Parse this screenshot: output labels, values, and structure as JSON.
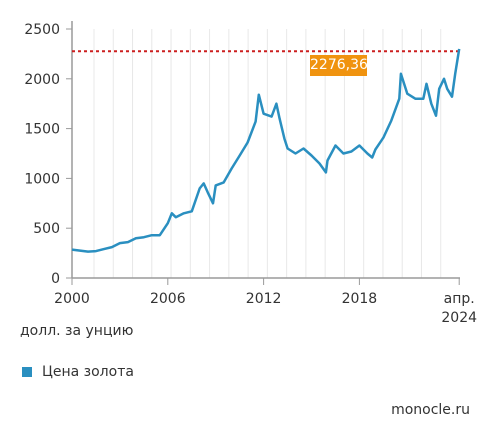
{
  "chart_data": {
    "type": "line",
    "ylim": [
      0,
      2500
    ],
    "yticks": [
      0,
      500,
      1000,
      1500,
      2000,
      2500
    ],
    "xlim": [
      2000,
      2024.3
    ],
    "xticks": [
      {
        "value": 2000,
        "label": "2000",
        "label2": ""
      },
      {
        "value": 2006,
        "label": "2006",
        "label2": ""
      },
      {
        "value": 2012,
        "label": "2012",
        "label2": ""
      },
      {
        "value": 2018,
        "label": "2018",
        "label2": ""
      },
      {
        "value": 2024.25,
        "label": "апр.",
        "label2": "2024"
      }
    ],
    "grid": "vertical",
    "ylabel": "долл. за унцию",
    "reference_line": {
      "value": 2276.36,
      "label": "2276,36",
      "color": "#cc1f1f"
    },
    "series": [
      {
        "name": "Цена золота",
        "color": "#2a8fc0",
        "x": [
          2000,
          2000.5,
          2001,
          2001.5,
          2002,
          2002.5,
          2003,
          2003.5,
          2004,
          2004.5,
          2005,
          2005.5,
          2006,
          2006.25,
          2006.5,
          2007,
          2007.5,
          2008,
          2008.25,
          2008.5,
          2008.83,
          2009,
          2009.5,
          2010,
          2010.5,
          2011,
          2011.5,
          2011.7,
          2012,
          2012.5,
          2012.8,
          2013,
          2013.3,
          2013.5,
          2014,
          2014.5,
          2015,
          2015.5,
          2015.9,
          2016,
          2016.5,
          2017,
          2017.5,
          2018,
          2018.5,
          2018.8,
          2019,
          2019.5,
          2020,
          2020.5,
          2020.6,
          2021,
          2021.5,
          2022,
          2022.2,
          2022.5,
          2022.8,
          2023,
          2023.3,
          2023.5,
          2023.8,
          2024,
          2024.25
        ],
        "y": [
          285,
          275,
          265,
          270,
          290,
          310,
          350,
          360,
          400,
          410,
          430,
          430,
          550,
          650,
          610,
          650,
          670,
          900,
          950,
          860,
          750,
          930,
          960,
          1100,
          1230,
          1360,
          1570,
          1840,
          1650,
          1620,
          1750,
          1600,
          1400,
          1300,
          1250,
          1300,
          1230,
          1150,
          1060,
          1180,
          1330,
          1250,
          1270,
          1330,
          1250,
          1210,
          1290,
          1410,
          1580,
          1800,
          2050,
          1850,
          1800,
          1800,
          1950,
          1750,
          1630,
          1900,
          2000,
          1900,
          1820,
          2050,
          2300
        ]
      }
    ]
  },
  "legend": {
    "label": "Цена золота"
  },
  "unit_label": "долл. за унцию",
  "source": "monocle.ru"
}
